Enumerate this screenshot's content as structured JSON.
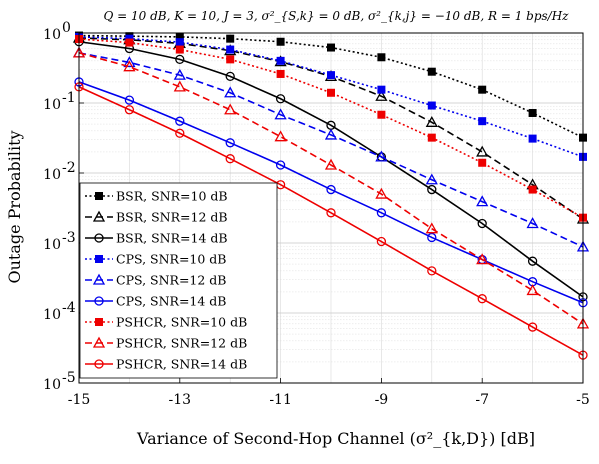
{
  "chart_data": {
    "type": "line",
    "title": "Q = 10 dB, K = 10, J = 3, σ²_{S,k} = 0 dB, σ²_{k,j} = −10 dB, R = 1 bps/Hz",
    "xlabel": "Variance of Second-Hop Channel (σ²_{k,D}) [dB]",
    "ylabel": "Outage Probability",
    "xlim": [
      -15,
      -5
    ],
    "ylim": [
      1e-05,
      1
    ],
    "yscale": "log",
    "grid": true,
    "legend_position": "bottom-left",
    "x_ticks": [
      "-15",
      "-13",
      "-11",
      "-9",
      "-7",
      "-5"
    ],
    "y_ticks": [
      "10^0",
      "10^-1",
      "10^-2",
      "10^-3",
      "10^-4",
      "10^-5"
    ],
    "x": [
      -15,
      -14,
      -13,
      -12,
      -11,
      -10,
      -9,
      -8,
      -7,
      -6,
      -5
    ],
    "series": [
      {
        "name": "BSR, SNR=10 dB",
        "color": "#000000",
        "dash": "dotted",
        "marker": "square",
        "values": [
          0.92,
          0.9,
          0.88,
          0.83,
          0.75,
          0.62,
          0.45,
          0.28,
          0.155,
          0.072,
          0.032
        ]
      },
      {
        "name": "BSR, SNR=12 dB",
        "color": "#000000",
        "dash": "dashed",
        "marker": "triangle",
        "values": [
          0.85,
          0.8,
          0.71,
          0.56,
          0.39,
          0.24,
          0.125,
          0.053,
          0.02,
          0.0068,
          0.0022
        ]
      },
      {
        "name": "BSR, SNR=14 dB",
        "color": "#000000",
        "dash": "solid",
        "marker": "circle",
        "values": [
          0.75,
          0.6,
          0.42,
          0.24,
          0.115,
          0.048,
          0.017,
          0.0058,
          0.0019,
          0.00055,
          0.00017
        ]
      },
      {
        "name": "CPS, SNR=10 dB",
        "color": "#0000ee",
        "dash": "dotted",
        "marker": "square",
        "values": [
          0.88,
          0.83,
          0.74,
          0.58,
          0.4,
          0.25,
          0.155,
          0.092,
          0.055,
          0.031,
          0.017
        ]
      },
      {
        "name": "CPS, SNR=12 dB",
        "color": "#0000ee",
        "dash": "dashed",
        "marker": "triangle",
        "values": [
          0.52,
          0.38,
          0.25,
          0.14,
          0.068,
          0.035,
          0.017,
          0.008,
          0.0039,
          0.0019,
          0.00088
        ]
      },
      {
        "name": "CPS, SNR=14 dB",
        "color": "#0000ee",
        "dash": "solid",
        "marker": "circle",
        "values": [
          0.2,
          0.11,
          0.055,
          0.027,
          0.013,
          0.0058,
          0.0027,
          0.0012,
          0.00058,
          0.00028,
          0.00014
        ]
      },
      {
        "name": "PSHCR, SNR=10 dB",
        "color": "#ee0000",
        "dash": "dotted",
        "marker": "square",
        "values": [
          0.82,
          0.73,
          0.58,
          0.42,
          0.26,
          0.14,
          0.068,
          0.032,
          0.014,
          0.0058,
          0.0023
        ]
      },
      {
        "name": "PSHCR, SNR=12 dB",
        "color": "#ee0000",
        "dash": "dashed",
        "marker": "triangle",
        "values": [
          0.52,
          0.33,
          0.17,
          0.08,
          0.033,
          0.013,
          0.005,
          0.0016,
          0.00058,
          0.00021,
          7e-05
        ]
      },
      {
        "name": "PSHCR, SNR=14 dB",
        "color": "#ee0000",
        "dash": "solid",
        "marker": "circle",
        "values": [
          0.17,
          0.08,
          0.037,
          0.016,
          0.0068,
          0.0027,
          0.00105,
          0.0004,
          0.00016,
          6.3e-05,
          2.5e-05
        ]
      }
    ]
  }
}
